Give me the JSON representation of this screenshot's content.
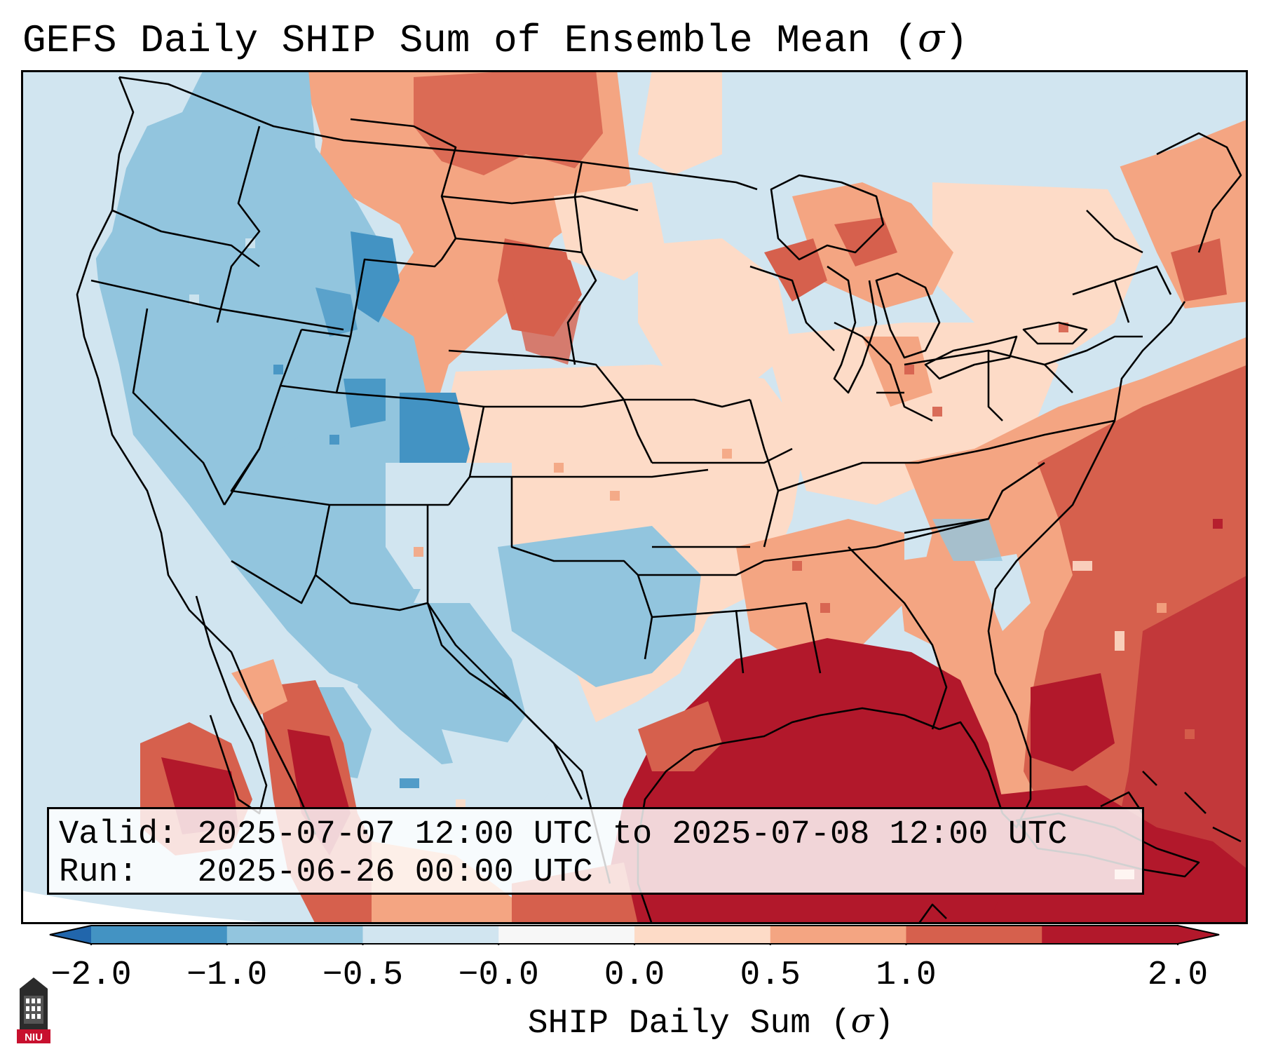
{
  "title": {
    "prefix": "GEFS Daily SHIP Sum of Ensemble Mean (",
    "symbol": "σ",
    "suffix": ")"
  },
  "info": {
    "valid_label": "Valid:",
    "valid_value": "2025-07-07 12:00 UTC to 2025-07-08 12:00 UTC",
    "run_label": "Run:",
    "run_value": "2025-06-26 00:00 UTC"
  },
  "colorbar": {
    "label_prefix": "SHIP Daily Sum (",
    "label_symbol": "σ",
    "label_suffix": ")",
    "ticks": [
      "−2.0",
      "−1.0",
      "−0.5",
      "−0.0",
      "0.0",
      "0.5",
      "1.0",
      "2.0"
    ],
    "colors": [
      "#4393c3",
      "#92c5de",
      "#d1e5f0",
      "#f7f7f7",
      "#fddbc7",
      "#f4a582",
      "#d6604d",
      "#b2182b"
    ],
    "extend_low_color": "#2166ac",
    "extend_high_color": "#b2182b"
  },
  "logo": {
    "text": "NIU",
    "icon": "university-tower-icon"
  }
}
